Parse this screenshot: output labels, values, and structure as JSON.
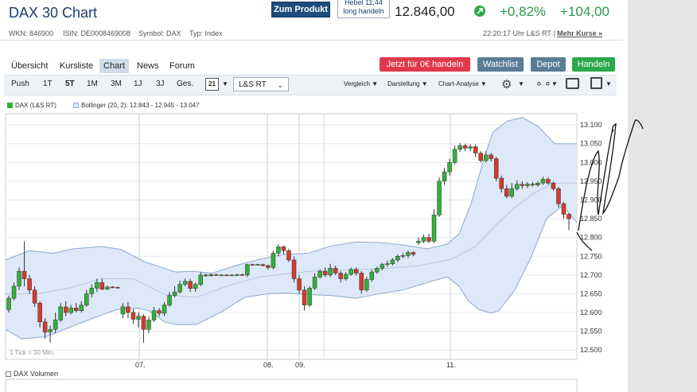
{
  "header": {
    "title": "DAX 30 Chart",
    "zum_produkt": "Zum Produkt",
    "hebel_line1": "Hebel 11,44",
    "hebel_line2": "long handeln",
    "price": "12.846,00",
    "change_pct": "+0,82%",
    "change_abs": "+104,00",
    "up_color": "#2aa84a"
  },
  "meta": {
    "wkn": "WKN: 846900",
    "isin": "ISIN: DE0008469008",
    "symbol": "Symbol: DAX",
    "typ": "Typ: Index",
    "time": "22:20:17 Uhr L&S RT",
    "mehr": "Mehr Kurse »"
  },
  "tabs": [
    "Übersicht",
    "Kursliste",
    "Chart",
    "News",
    "Forum"
  ],
  "buttons": {
    "trade": "Jetzt für 0€ handeln",
    "watchlist": "Watchlist",
    "depot": "Depot",
    "handeln": "Handeln"
  },
  "toolbar": {
    "ranges": [
      "Push",
      "1T",
      "5T",
      "1M",
      "3M",
      "1J",
      "3J",
      "Ges."
    ],
    "active_range": "5T",
    "calendar_day": "21",
    "exchange": "L&S RT",
    "vergleich": "Vergleich",
    "darstellung": "Darstellung",
    "analyse": "Chart-Analyse"
  },
  "chart_data": {
    "type": "candlestick",
    "legend": {
      "series": "DAX (L&S RT)",
      "bollinger": "Bollinger (20, 2): 12.843 - 12.945 - 13.047"
    },
    "y_ticks": [
      "13.100",
      "13.050",
      "13.000",
      "12.950",
      "12.900",
      "12.850",
      "12.800",
      "12.750",
      "12.700",
      "12.650",
      "12.600",
      "12.550",
      "12.500"
    ],
    "ylim": [
      12475,
      13130
    ],
    "x_labels": [
      "07.",
      "08.",
      "09.",
      "11."
    ],
    "tick_note": "1 Tick = 30 Min.",
    "colors": {
      "up": "#33b03a",
      "down": "#d43a2d",
      "band_fill": "#dde8f8",
      "band_line": "#8fa8d0"
    },
    "candles": [
      [
        12608,
        12638,
        12600,
        12645
      ],
      [
        12638,
        12670,
        12632,
        12680
      ],
      [
        12670,
        12710,
        12660,
        12720
      ],
      [
        12710,
        12690,
        12670,
        12790
      ],
      [
        12690,
        12660,
        12650,
        12700
      ],
      [
        12660,
        12625,
        12615,
        12670
      ],
      [
        12625,
        12575,
        12560,
        12630
      ],
      [
        12575,
        12548,
        12530,
        12585
      ],
      [
        12548,
        12555,
        12520,
        12565
      ],
      [
        12555,
        12580,
        12545,
        12600
      ],
      [
        12580,
        12615,
        12575,
        12625
      ],
      [
        12615,
        12600,
        12590,
        12630
      ],
      [
        12600,
        12612,
        12595,
        12620
      ],
      [
        12612,
        12605,
        12600,
        12625
      ],
      [
        12605,
        12620,
        12600,
        12630
      ],
      [
        12620,
        12650,
        12615,
        12660
      ],
      [
        12650,
        12665,
        12640,
        12675
      ],
      [
        12665,
        12680,
        12655,
        12690
      ],
      [
        12680,
        12662,
        12660,
        12690
      ],
      [
        12662,
        12668,
        12660,
        12672
      ],
      [
        12668,
        12667,
        12665,
        12670
      ],
      [
        12667,
        12666,
        12665,
        12669
      ],
      [
        12596,
        12615,
        12585,
        12625
      ],
      [
        12615,
        12600,
        12585,
        12628
      ],
      [
        12600,
        12582,
        12570,
        12610
      ],
      [
        12582,
        12590,
        12560,
        12600
      ],
      [
        12590,
        12555,
        12520,
        12595
      ],
      [
        12555,
        12580,
        12545,
        12590
      ],
      [
        12580,
        12605,
        12575,
        12615
      ],
      [
        12605,
        12598,
        12590,
        12612
      ],
      [
        12598,
        12620,
        12590,
        12628
      ],
      [
        12620,
        12645,
        12615,
        12655
      ],
      [
        12645,
        12655,
        12640,
        12670
      ],
      [
        12655,
        12675,
        12650,
        12685
      ],
      [
        12675,
        12683,
        12670,
        12690
      ],
      [
        12683,
        12664,
        12655,
        12690
      ],
      [
        12664,
        12675,
        12655,
        12680
      ],
      [
        12675,
        12700,
        12670,
        12708
      ],
      [
        12700,
        12698,
        12695,
        12703
      ],
      [
        12698,
        12701,
        12696,
        12704
      ],
      [
        12701,
        12699,
        12697,
        12703
      ],
      [
        12699,
        12700,
        12697,
        12702
      ],
      [
        12700,
        12699,
        12697,
        12702
      ],
      [
        12699,
        12700,
        12697,
        12702
      ],
      [
        12700,
        12701,
        12697,
        12703
      ],
      [
        12701,
        12700,
        12698,
        12703
      ],
      [
        12700,
        12728,
        12695,
        12730
      ],
      [
        12728,
        12727,
        12725,
        12730
      ],
      [
        12727,
        12728,
        12725,
        12730
      ],
      [
        12728,
        12725,
        12723,
        12730
      ],
      [
        12725,
        12720,
        12715,
        12728
      ],
      [
        12720,
        12758,
        12715,
        12765
      ],
      [
        12758,
        12775,
        12750,
        12782
      ],
      [
        12775,
        12765,
        12755,
        12778
      ],
      [
        12765,
        12740,
        12735,
        12770
      ],
      [
        12740,
        12690,
        12680,
        12750
      ],
      [
        12690,
        12660,
        12650,
        12700
      ],
      [
        12660,
        12620,
        12605,
        12670
      ],
      [
        12620,
        12665,
        12615,
        12670
      ],
      [
        12665,
        12695,
        12660,
        12705
      ],
      [
        12695,
        12710,
        12690,
        12715
      ],
      [
        12710,
        12700,
        12695,
        12720
      ],
      [
        12700,
        12718,
        12695,
        12730
      ],
      [
        12718,
        12705,
        12700,
        12725
      ],
      [
        12705,
        12690,
        12680,
        12710
      ],
      [
        12690,
        12702,
        12685,
        12708
      ],
      [
        12702,
        12715,
        12698,
        12720
      ],
      [
        12715,
        12705,
        12698,
        12720
      ],
      [
        12705,
        12660,
        12650,
        12710
      ],
      [
        12660,
        12688,
        12655,
        12695
      ],
      [
        12688,
        12708,
        12682,
        12715
      ],
      [
        12708,
        12718,
        12703,
        12722
      ],
      [
        12718,
        12728,
        12712,
        12732
      ],
      [
        12728,
        12730,
        12722,
        12738
      ],
      [
        12730,
        12740,
        12725,
        12745
      ],
      [
        12740,
        12750,
        12735,
        12755
      ],
      [
        12750,
        12752,
        12744,
        12758
      ],
      [
        12752,
        12760,
        12745,
        12765
      ],
      [
        12760,
        12755,
        12750,
        12763
      ],
      [
        12786,
        12790,
        12780,
        12800
      ],
      [
        12790,
        12800,
        12785,
        12808
      ],
      [
        12800,
        12790,
        12785,
        12810
      ],
      [
        12790,
        12860,
        12785,
        12875
      ],
      [
        12860,
        12950,
        12855,
        12960
      ],
      [
        12950,
        12975,
        12940,
        12985
      ],
      [
        12975,
        13000,
        12965,
        13010
      ],
      [
        13000,
        13035,
        12995,
        13045
      ],
      [
        13035,
        13045,
        13028,
        13052
      ],
      [
        13045,
        13038,
        13030,
        13050
      ],
      [
        13038,
        13042,
        13030,
        13048
      ],
      [
        13042,
        13025,
        13015,
        13048
      ],
      [
        13025,
        13005,
        13000,
        13030
      ],
      [
        13005,
        13020,
        13000,
        13030
      ],
      [
        13020,
        13010,
        13002,
        13025
      ],
      [
        13010,
        12958,
        12950,
        13015
      ],
      [
        12958,
        12930,
        12920,
        12965
      ],
      [
        12930,
        12910,
        12905,
        12940
      ],
      [
        12910,
        12930,
        12905,
        12945
      ],
      [
        12930,
        12942,
        12925,
        12952
      ],
      [
        12942,
        12938,
        12930,
        12950
      ],
      [
        12938,
        12942,
        12932,
        12948
      ],
      [
        12942,
        12940,
        12935,
        12948
      ],
      [
        12940,
        12945,
        12935,
        12950
      ],
      [
        12945,
        12955,
        12940,
        12962
      ],
      [
        12955,
        12945,
        12940,
        12960
      ],
      [
        12945,
        12930,
        12925,
        12950
      ],
      [
        12930,
        12890,
        12880,
        12935
      ],
      [
        12890,
        12862,
        12850,
        12895
      ],
      [
        12862,
        12850,
        12820,
        12865
      ]
    ],
    "bollinger": {
      "upper": [
        [
          0,
          12740
        ],
        [
          30,
          12765
        ],
        [
          60,
          12758
        ],
        [
          85,
          12770
        ],
        [
          121,
          12776
        ],
        [
          145,
          12768
        ],
        [
          175,
          12735
        ],
        [
          214,
          12708
        ],
        [
          234,
          12710
        ],
        [
          260,
          12705
        ],
        [
          290,
          12726
        ],
        [
          320,
          12742
        ],
        [
          350,
          12755
        ],
        [
          380,
          12758
        ],
        [
          410,
          12778
        ],
        [
          440,
          12788
        ],
        [
          470,
          12787
        ],
        [
          500,
          12780
        ],
        [
          530,
          12770
        ],
        [
          555,
          12782
        ],
        [
          570,
          12810
        ],
        [
          585,
          12890
        ],
        [
          600,
          13000
        ],
        [
          612,
          13080
        ],
        [
          630,
          13110
        ],
        [
          650,
          13120
        ],
        [
          670,
          13095
        ],
        [
          690,
          13050
        ],
        [
          718,
          13050
        ]
      ],
      "lower": [
        [
          0,
          12555
        ],
        [
          20,
          12530
        ],
        [
          50,
          12535
        ],
        [
          80,
          12560
        ],
        [
          110,
          12585
        ],
        [
          140,
          12608
        ],
        [
          165,
          12612
        ],
        [
          180,
          12605
        ],
        [
          200,
          12575
        ],
        [
          214,
          12568
        ],
        [
          240,
          12568
        ],
        [
          270,
          12600
        ],
        [
          300,
          12640
        ],
        [
          330,
          12650
        ],
        [
          350,
          12652
        ],
        [
          380,
          12648
        ],
        [
          410,
          12645
        ],
        [
          440,
          12638
        ],
        [
          470,
          12650
        ],
        [
          500,
          12660
        ],
        [
          530,
          12680
        ],
        [
          555,
          12695
        ],
        [
          570,
          12670
        ],
        [
          582,
          12630
        ],
        [
          595,
          12608
        ],
        [
          610,
          12598
        ],
        [
          620,
          12605
        ],
        [
          640,
          12660
        ],
        [
          660,
          12745
        ],
        [
          680,
          12850
        ],
        [
          700,
          12885
        ],
        [
          718,
          12840
        ]
      ],
      "middle": [
        [
          0,
          12650
        ],
        [
          40,
          12650
        ],
        [
          80,
          12665
        ],
        [
          120,
          12690
        ],
        [
          160,
          12690
        ],
        [
          200,
          12648
        ],
        [
          240,
          12640
        ],
        [
          280,
          12672
        ],
        [
          320,
          12695
        ],
        [
          360,
          12705
        ],
        [
          400,
          12713
        ],
        [
          440,
          12714
        ],
        [
          480,
          12718
        ],
        [
          520,
          12725
        ],
        [
          560,
          12742
        ],
        [
          590,
          12775
        ],
        [
          615,
          12830
        ],
        [
          640,
          12880
        ],
        [
          665,
          12920
        ],
        [
          690,
          12945
        ],
        [
          718,
          12945
        ]
      ]
    }
  },
  "volume_label": "DAX Volumen"
}
